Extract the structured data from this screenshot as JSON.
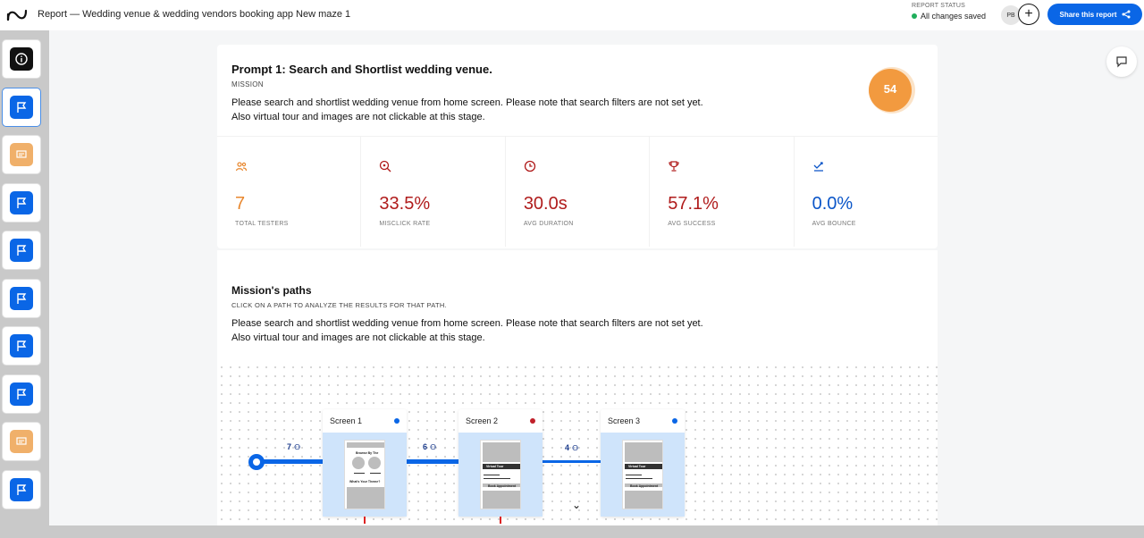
{
  "header": {
    "title": "Report — Wedding venue & wedding vendors booking app New maze 1",
    "status_label": "REPORT STATUS",
    "status_value": "All changes saved",
    "avatar_initials": "PB",
    "share_label": "Share this report"
  },
  "sidebar": {
    "items": [
      {
        "icon": "info-icon",
        "color": "black"
      },
      {
        "icon": "flag-icon",
        "color": "blue",
        "active": true
      },
      {
        "icon": "message-icon",
        "color": "orange"
      },
      {
        "icon": "flag-icon",
        "color": "blue"
      },
      {
        "icon": "flag-icon",
        "color": "blue"
      },
      {
        "icon": "flag-icon",
        "color": "blue"
      },
      {
        "icon": "flag-icon",
        "color": "blue"
      },
      {
        "icon": "flag-icon",
        "color": "blue"
      },
      {
        "icon": "message-icon",
        "color": "orange"
      },
      {
        "icon": "flag-icon",
        "color": "blue"
      }
    ]
  },
  "prompt": {
    "title": "Prompt 1: Search and Shortlist wedding venue.",
    "mission_label": "MISSION",
    "mission_text": "Please search and shortlist wedding venue from home screen. Please note that search filters are not set yet. Also virtual tour and images are not clickable at this stage.",
    "score": "54"
  },
  "stats": [
    {
      "icon": "users-icon",
      "value": "7",
      "label": "TOTAL TESTERS",
      "color": "#e8872e"
    },
    {
      "icon": "misclick-icon",
      "value": "33.5%",
      "label": "MISCLICK RATE",
      "color": "#b01c1c"
    },
    {
      "icon": "clock-icon",
      "value": "30.0s",
      "label": "AVG DURATION",
      "color": "#b01c1c"
    },
    {
      "icon": "trophy-icon",
      "value": "57.1%",
      "label": "AVG SUCCESS",
      "color": "#b01c1c"
    },
    {
      "icon": "bounce-icon",
      "value": "0.0%",
      "label": "AVG BOUNCE",
      "color": "#0a55c8"
    }
  ],
  "paths": {
    "title": "Mission's paths",
    "subtitle": "CLICK ON A PATH TO ANALYZE THE RESULTS FOR THAT PATH.",
    "text": "Please search and shortlist wedding venue from home screen. Please note that search filters are not set yet. Also virtual tour and images are not clickable at this stage.",
    "edges": [
      "7",
      "6",
      "4"
    ],
    "screens": [
      {
        "name": "Screen 1",
        "dot_color": "#0a66e6",
        "thumb_text_1": "Browse By The",
        "thumb_text_2": "What's Your Theme?"
      },
      {
        "name": "Screen 2",
        "dot_color": "#c0202a",
        "thumb_text_1": "Virtual Tour",
        "thumb_text_2": "Book Appointment"
      },
      {
        "name": "Screen 3",
        "dot_color": "#0a66e6",
        "thumb_text_1": "Virtual Tour",
        "thumb_text_2": "Book Appointment"
      }
    ]
  },
  "colors": {
    "accent": "#0a66e6",
    "score": "#f29a3f"
  }
}
